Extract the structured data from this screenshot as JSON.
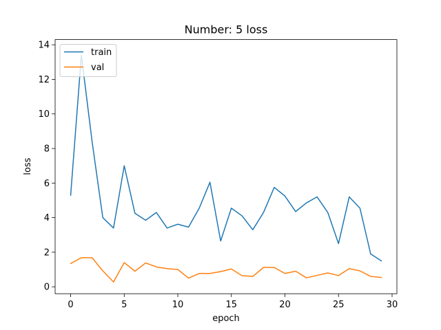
{
  "chart_data": {
    "type": "line",
    "title": "Number: 5 loss",
    "xlabel": "epoch",
    "ylabel": "loss",
    "xlim": [
      -1.45,
      30.45
    ],
    "ylim": [
      -0.4,
      14.3
    ],
    "xticks": [
      0,
      5,
      10,
      15,
      20,
      25,
      30
    ],
    "yticks": [
      0,
      2,
      4,
      6,
      8,
      10,
      12,
      14
    ],
    "grid": false,
    "legend_position": "top-left",
    "x": [
      0,
      1,
      2,
      3,
      4,
      5,
      6,
      7,
      8,
      9,
      10,
      11,
      12,
      13,
      14,
      15,
      16,
      17,
      18,
      19,
      20,
      21,
      22,
      23,
      24,
      25,
      26,
      27,
      28,
      29
    ],
    "series": [
      {
        "name": "train",
        "color": "#1f77b4",
        "values": [
          5.3,
          13.4,
          8.4,
          4.0,
          3.4,
          7.0,
          4.25,
          3.85,
          4.3,
          3.4,
          3.62,
          3.45,
          4.55,
          6.05,
          2.65,
          4.55,
          4.1,
          3.3,
          4.3,
          5.75,
          5.25,
          4.35,
          4.85,
          5.2,
          4.3,
          2.5,
          5.2,
          4.55,
          1.9,
          1.5
        ]
      },
      {
        "name": "val",
        "color": "#ff7f0e",
        "values": [
          1.35,
          1.68,
          1.68,
          0.92,
          0.28,
          1.4,
          0.9,
          1.38,
          1.15,
          1.05,
          1.0,
          0.5,
          0.77,
          0.77,
          0.88,
          1.03,
          0.64,
          0.6,
          1.12,
          1.12,
          0.77,
          0.9,
          0.52,
          0.66,
          0.8,
          0.65,
          1.05,
          0.92,
          0.6,
          0.54
        ]
      }
    ]
  }
}
